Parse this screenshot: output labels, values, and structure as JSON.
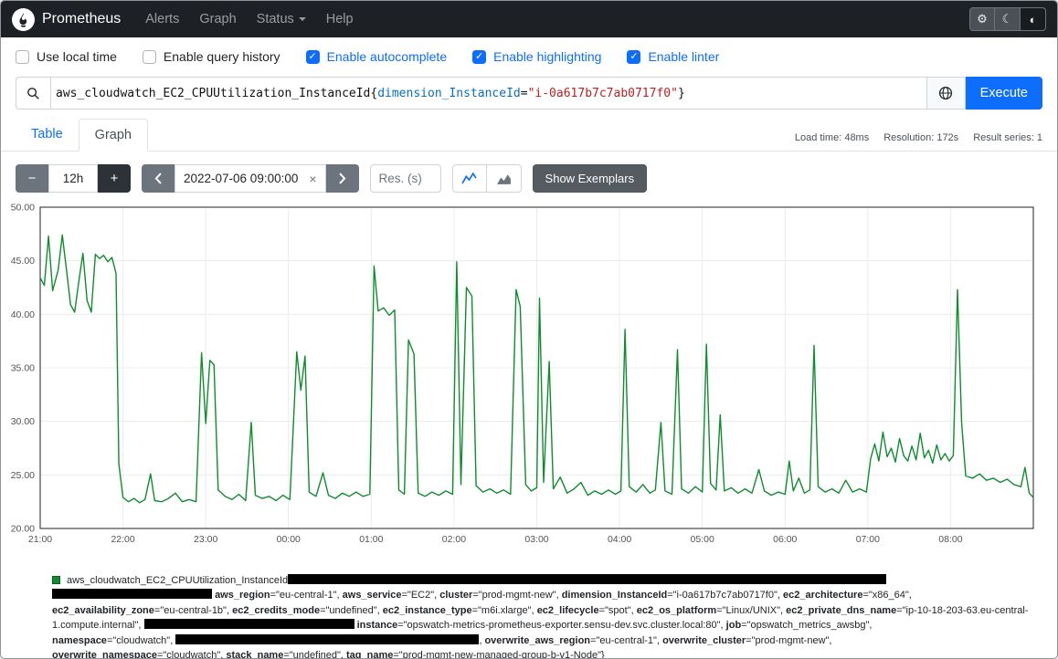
{
  "navbar": {
    "brand": "Prometheus",
    "items": [
      {
        "label": "Alerts"
      },
      {
        "label": "Graph"
      },
      {
        "label": "Status"
      },
      {
        "label": "Help"
      }
    ]
  },
  "icons": {
    "gear": "⚙",
    "moon": "☾",
    "contrast": "◐"
  },
  "options": [
    {
      "label": "Use local time",
      "checked": false
    },
    {
      "label": "Enable query history",
      "checked": false
    },
    {
      "label": "Enable autocomplete",
      "checked": true
    },
    {
      "label": "Enable highlighting",
      "checked": true
    },
    {
      "label": "Enable linter",
      "checked": true
    }
  ],
  "query": {
    "metric": "aws_cloudwatch_EC2_CPUUtilization_InstanceId",
    "open": "{",
    "label": "dimension_InstanceId",
    "eq": "=",
    "value": "\"i-0a617b7c7ab0717f0\"",
    "close": "}",
    "execute_label": "Execute"
  },
  "tabs": {
    "table": "Table",
    "graph": "Graph"
  },
  "stats": {
    "load_time": "Load time: 48ms",
    "resolution": "Resolution: 172s",
    "result_series": "Result series: 1"
  },
  "controls": {
    "minus": "−",
    "range": "12h",
    "plus": "+",
    "datetime": "2022-07-06 09:00:00",
    "clear": "×",
    "res_placeholder": "Res. (s)",
    "show_exemplars": "Show Exemplars"
  },
  "chart_data": {
    "type": "line",
    "title": "",
    "xlabel": "",
    "ylabel": "",
    "color": "#0f8c2e",
    "grid": true,
    "ylim": [
      20,
      50
    ],
    "x_range": [
      0,
      720
    ],
    "series_name": "aws_cloudwatch_EC2_CPUUtilization_InstanceId",
    "y_ticks": [
      {
        "v": 20,
        "label": "20.00"
      },
      {
        "v": 25,
        "label": "25.00"
      },
      {
        "v": 30,
        "label": "30.00"
      },
      {
        "v": 35,
        "label": "35.00"
      },
      {
        "v": 40,
        "label": "40.00"
      },
      {
        "v": 45,
        "label": "45.00"
      },
      {
        "v": 50,
        "label": "50.00"
      }
    ],
    "x_ticks": [
      {
        "m": 0,
        "label": "21:00"
      },
      {
        "m": 60,
        "label": "22:00"
      },
      {
        "m": 120,
        "label": "23:00"
      },
      {
        "m": 180,
        "label": "00:00"
      },
      {
        "m": 240,
        "label": "01:00"
      },
      {
        "m": 300,
        "label": "02:00"
      },
      {
        "m": 360,
        "label": "03:00"
      },
      {
        "m": 420,
        "label": "04:00"
      },
      {
        "m": 480,
        "label": "05:00"
      },
      {
        "m": 540,
        "label": "06:00"
      },
      {
        "m": 600,
        "label": "07:00"
      },
      {
        "m": 660,
        "label": "08:00"
      }
    ],
    "points": [
      [
        0,
        43.4
      ],
      [
        3,
        42.7
      ],
      [
        6,
        47.3
      ],
      [
        9,
        42.2
      ],
      [
        13,
        44.1
      ],
      [
        16,
        47.4
      ],
      [
        19,
        44.2
      ],
      [
        22,
        40.9
      ],
      [
        25,
        40.2
      ],
      [
        28,
        43.1
      ],
      [
        31,
        45.7
      ],
      [
        34,
        41.3
      ],
      [
        37,
        40.2
      ],
      [
        40,
        45.6
      ],
      [
        43,
        45.2
      ],
      [
        46,
        45.5
      ],
      [
        49,
        44.9
      ],
      [
        52,
        45.3
      ],
      [
        55,
        43.8
      ],
      [
        57,
        26
      ],
      [
        60,
        22.9
      ],
      [
        64,
        22.5
      ],
      [
        68,
        22.8
      ],
      [
        72,
        22.4
      ],
      [
        76,
        22.7
      ],
      [
        80,
        25.1
      ],
      [
        83,
        22.6
      ],
      [
        88,
        22.5
      ],
      [
        93,
        22.8
      ],
      [
        98,
        23.3
      ],
      [
        103,
        22.5
      ],
      [
        108,
        22.7
      ],
      [
        113,
        22.5
      ],
      [
        117,
        36.4
      ],
      [
        120,
        29.8
      ],
      [
        123,
        35.7
      ],
      [
        126,
        35.3
      ],
      [
        129,
        23.6
      ],
      [
        134,
        23
      ],
      [
        139,
        22.7
      ],
      [
        144,
        23.2
      ],
      [
        149,
        22.6
      ],
      [
        153,
        29.9
      ],
      [
        156,
        23.1
      ],
      [
        161,
        22.8
      ],
      [
        166,
        23
      ],
      [
        171,
        22.6
      ],
      [
        176,
        23.1
      ],
      [
        181,
        22.7
      ],
      [
        186,
        36.5
      ],
      [
        189,
        32.9
      ],
      [
        192,
        36.1
      ],
      [
        195,
        23.4
      ],
      [
        200,
        23
      ],
      [
        205,
        25.2
      ],
      [
        209,
        23.1
      ],
      [
        214,
        22.8
      ],
      [
        219,
        23.3
      ],
      [
        224,
        23
      ],
      [
        229,
        23.4
      ],
      [
        234,
        23
      ],
      [
        239,
        23.2
      ],
      [
        242,
        44.5
      ],
      [
        245,
        40.3
      ],
      [
        249,
        40.6
      ],
      [
        253,
        39.9
      ],
      [
        257,
        40.4
      ],
      [
        260,
        23.6
      ],
      [
        264,
        23.2
      ],
      [
        267,
        37.6
      ],
      [
        271,
        36.3
      ],
      [
        274,
        23.3
      ],
      [
        279,
        23
      ],
      [
        284,
        23.4
      ],
      [
        289,
        23.1
      ],
      [
        294,
        23.5
      ],
      [
        299,
        23.2
      ],
      [
        302,
        44.9
      ],
      [
        305,
        24.1
      ],
      [
        309,
        42.5
      ],
      [
        313,
        41.7
      ],
      [
        316,
        24
      ],
      [
        321,
        23.4
      ],
      [
        326,
        23.7
      ],
      [
        331,
        23.3
      ],
      [
        336,
        23.6
      ],
      [
        341,
        23.2
      ],
      [
        345,
        42.3
      ],
      [
        348,
        40.7
      ],
      [
        352,
        24.1
      ],
      [
        356,
        23.5
      ],
      [
        360,
        23.8
      ],
      [
        362,
        41.5
      ],
      [
        365,
        24.3
      ],
      [
        369,
        35.6
      ],
      [
        372,
        23.7
      ],
      [
        377,
        24.8
      ],
      [
        382,
        23.3
      ],
      [
        387,
        23.7
      ],
      [
        392,
        24.3
      ],
      [
        397,
        23.1
      ],
      [
        402,
        23.5
      ],
      [
        407,
        23.2
      ],
      [
        412,
        23.6
      ],
      [
        417,
        23.2
      ],
      [
        421,
        23.5
      ],
      [
        424,
        38.6
      ],
      [
        427,
        23.9
      ],
      [
        432,
        23.4
      ],
      [
        437,
        24.1
      ],
      [
        442,
        23.3
      ],
      [
        446,
        23.6
      ],
      [
        450,
        29.9
      ],
      [
        453,
        23.5
      ],
      [
        458,
        23.2
      ],
      [
        462,
        36.7
      ],
      [
        465,
        23.7
      ],
      [
        470,
        23.3
      ],
      [
        475,
        23.9
      ],
      [
        480,
        23.4
      ],
      [
        483,
        37.2
      ],
      [
        486,
        24.2
      ],
      [
        490,
        23.6
      ],
      [
        493,
        30.6
      ],
      [
        496,
        23.5
      ],
      [
        501,
        23.8
      ],
      [
        506,
        23.3
      ],
      [
        511,
        23.7
      ],
      [
        516,
        23.3
      ],
      [
        521,
        25.5
      ],
      [
        525,
        23.5
      ],
      [
        530,
        23.1
      ],
      [
        535,
        23.4
      ],
      [
        540,
        23.2
      ],
      [
        543,
        26.3
      ],
      [
        546,
        23.5
      ],
      [
        550,
        24.7
      ],
      [
        554,
        23.3
      ],
      [
        558,
        23.6
      ],
      [
        561,
        37.1
      ],
      [
        564,
        23.9
      ],
      [
        569,
        23.4
      ],
      [
        574,
        23.7
      ],
      [
        579,
        23.3
      ],
      [
        584,
        24.5
      ],
      [
        589,
        23.4
      ],
      [
        594,
        23.7
      ],
      [
        599,
        23.4
      ],
      [
        602,
        26.5
      ],
      [
        605,
        27.9
      ],
      [
        608,
        26.3
      ],
      [
        611,
        29
      ],
      [
        614,
        26.7
      ],
      [
        617,
        27.5
      ],
      [
        620,
        26.2
      ],
      [
        623,
        28.4
      ],
      [
        626,
        26.8
      ],
      [
        629,
        26.3
      ],
      [
        632,
        27.7
      ],
      [
        635,
        26.4
      ],
      [
        638,
        28.9
      ],
      [
        641,
        26.6
      ],
      [
        644,
        27.3
      ],
      [
        647,
        26.1
      ],
      [
        650,
        27.8
      ],
      [
        653,
        26.4
      ],
      [
        656,
        27
      ],
      [
        659,
        26.3
      ],
      [
        662,
        26.8
      ],
      [
        665,
        42.3
      ],
      [
        668,
        29.9
      ],
      [
        671,
        24.9
      ],
      [
        676,
        24.7
      ],
      [
        681,
        25.1
      ],
      [
        686,
        24.5
      ],
      [
        691,
        24.7
      ],
      [
        696,
        24.3
      ],
      [
        701,
        24.6
      ],
      [
        706,
        24.1
      ],
      [
        711,
        23.9
      ],
      [
        714,
        25.7
      ],
      [
        717,
        23.3
      ],
      [
        720,
        22.9
      ]
    ]
  },
  "legend": {
    "swatch_color": "#0f8c2e",
    "lines": [
      [
        {
          "t": "aws_cloudwatch_EC2_CPUUtilization_InstanceId"
        },
        {
          "bar": 655
        }
      ],
      [
        {
          "bar": 175
        },
        {
          "t": " "
        },
        {
          "b": "aws_region"
        },
        {
          "t": "=\"eu-central-1\", "
        },
        {
          "b": "aws_service"
        },
        {
          "t": "=\"EC2\", "
        },
        {
          "b": "cluster"
        },
        {
          "t": "=\"prod-mgmt-new\", "
        },
        {
          "b": "dimension_InstanceId"
        },
        {
          "t": "=\"i-0a617b7c7ab0717f0\", "
        },
        {
          "b": "ec2_architecture"
        },
        {
          "t": "=\"x86_64\","
        }
      ],
      [
        {
          "b": "ec2_availability_zone"
        },
        {
          "t": "=\"eu-central-1b\", "
        },
        {
          "b": "ec2_credits_mode"
        },
        {
          "t": "=\"undefined\", "
        },
        {
          "b": "ec2_instance_type"
        },
        {
          "t": "=\"m6i.xlarge\", "
        },
        {
          "b": "ec2_lifecycle"
        },
        {
          "t": "=\"spot\", "
        },
        {
          "b": "ec2_os_platform"
        },
        {
          "t": "=\"Linux/UNIX\", "
        },
        {
          "b": "ec2_private_dns_name"
        },
        {
          "t": "=\"ip-10-18-203-63.eu-central-"
        }
      ],
      [
        {
          "t": "1.compute.internal\", "
        },
        {
          "bar": 230
        },
        {
          "t": " "
        },
        {
          "b": "instance"
        },
        {
          "t": "=\"opswatch-metrics-prometheus-exporter.sensu-dev.svc.cluster.local:80\", "
        },
        {
          "b": "job"
        },
        {
          "t": "=\"opswatch_metrics_awsbg\","
        }
      ],
      [
        {
          "b": "namespace"
        },
        {
          "t": "=\"cloudwatch\", "
        },
        {
          "bar": 332
        },
        {
          "t": ", "
        },
        {
          "b": "overwrite_aws_region"
        },
        {
          "t": "=\"eu-central-1\", "
        },
        {
          "b": "overwrite_cluster"
        },
        {
          "t": "=\"prod-mgmt-new\","
        }
      ],
      [
        {
          "b": "overwrite_namespace"
        },
        {
          "t": "=\"cloudwatch\", "
        },
        {
          "b": "stack_name"
        },
        {
          "t": "=\"undefined\", "
        },
        {
          "b": "tag_name"
        },
        {
          "t": "=\"prod-mgmt-new-managed-group-b-v1-Node\"}"
        }
      ]
    ]
  }
}
